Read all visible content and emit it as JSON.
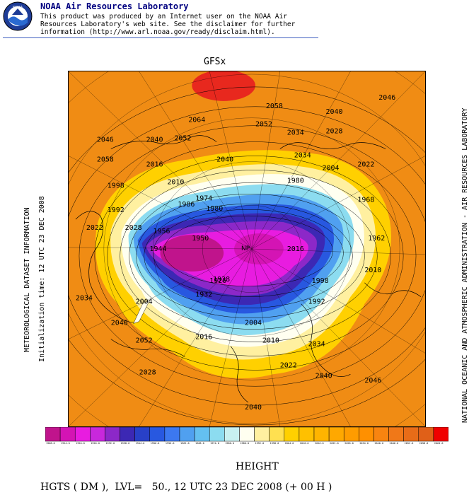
{
  "header": {
    "org_name": "NOAA Air Resources Laboratory",
    "disclaimer_line1": "This product was produced by an Internet user on the NOAA Air",
    "disclaimer_line2": "Resources Laboratory's web site.  See the disclaimer for further",
    "disclaimer_line3": "information (http://www.arl.noaa.gov/ready/disclaim.html).",
    "logo_text": "NOAA"
  },
  "map": {
    "title": "GFSx",
    "left_label": "METEOROLOGICAL DATASET INFORMATION",
    "left_sublabel": "Initialization time: 12 UTC 23 DEC 2008",
    "right_label": "NATIONAL OCEANIC AND ATMOSPHERIC ADMINISTRATION - AIR RESOURCES LABORATORY",
    "pole_label": "NP",
    "contour_labels": [
      "2046",
      "2058",
      "2064",
      "2040",
      "2052",
      "2034",
      "2028",
      "2046",
      "2040",
      "2058",
      "2052",
      "2040",
      "2034",
      "2016",
      "2010",
      "2004",
      "2022",
      "1998",
      "1992",
      "1980",
      "1974",
      "2028",
      "2022",
      "1986",
      "1980",
      "1968",
      "2016",
      "2010",
      "1962",
      "1956",
      "1950",
      "1944",
      "1938",
      "1932",
      "1926",
      "2004",
      "1998",
      "1992",
      "2034",
      "2046",
      "2052",
      "2028",
      "2016",
      "2004",
      "2010",
      "2022",
      "2034",
      "2040",
      "2040",
      "2046"
    ],
    "colors": {
      "ocean": "#f08c14",
      "high": "#e8281e",
      "low": "#d814c8"
    }
  },
  "colorbar": {
    "colors": [
      "#c0148c",
      "#d414b4",
      "#e81ce0",
      "#c828dc",
      "#8c28c8",
      "#3c28b4",
      "#2840c8",
      "#2858e0",
      "#3c78f0",
      "#50a0f0",
      "#64c0f0",
      "#8cdcf0",
      "#c8f0f0",
      "#fffff0",
      "#fff0a0",
      "#ffe050",
      "#ffd000",
      "#ffc000",
      "#ffb400",
      "#ffa800",
      "#ff9c00",
      "#ff9000",
      "#f88410",
      "#f07818",
      "#e86c18",
      "#e06018",
      "#f00000"
    ],
    "tick_labels": [
      "1908.0",
      "1914.0",
      "1920.0",
      "1926.0",
      "1932.0",
      "1938.0",
      "1944.0",
      "1950.0",
      "1956.0",
      "1962.0",
      "1968.0",
      "1974.0",
      "1980.0",
      "1986.0",
      "1992.0",
      "1998.0",
      "2004.0",
      "2010.0",
      "2016.0",
      "2022.0",
      "2028.0",
      "2034.0",
      "2040.0",
      "2046.0",
      "2052.0",
      "2058.0",
      "2064.0"
    ]
  },
  "footer": {
    "caption": "HEIGHT",
    "bottom_line": "HGTS ( DM ),  LVL=   50., 12 UTC 23 DEC 2008 (+ 00 H )"
  }
}
